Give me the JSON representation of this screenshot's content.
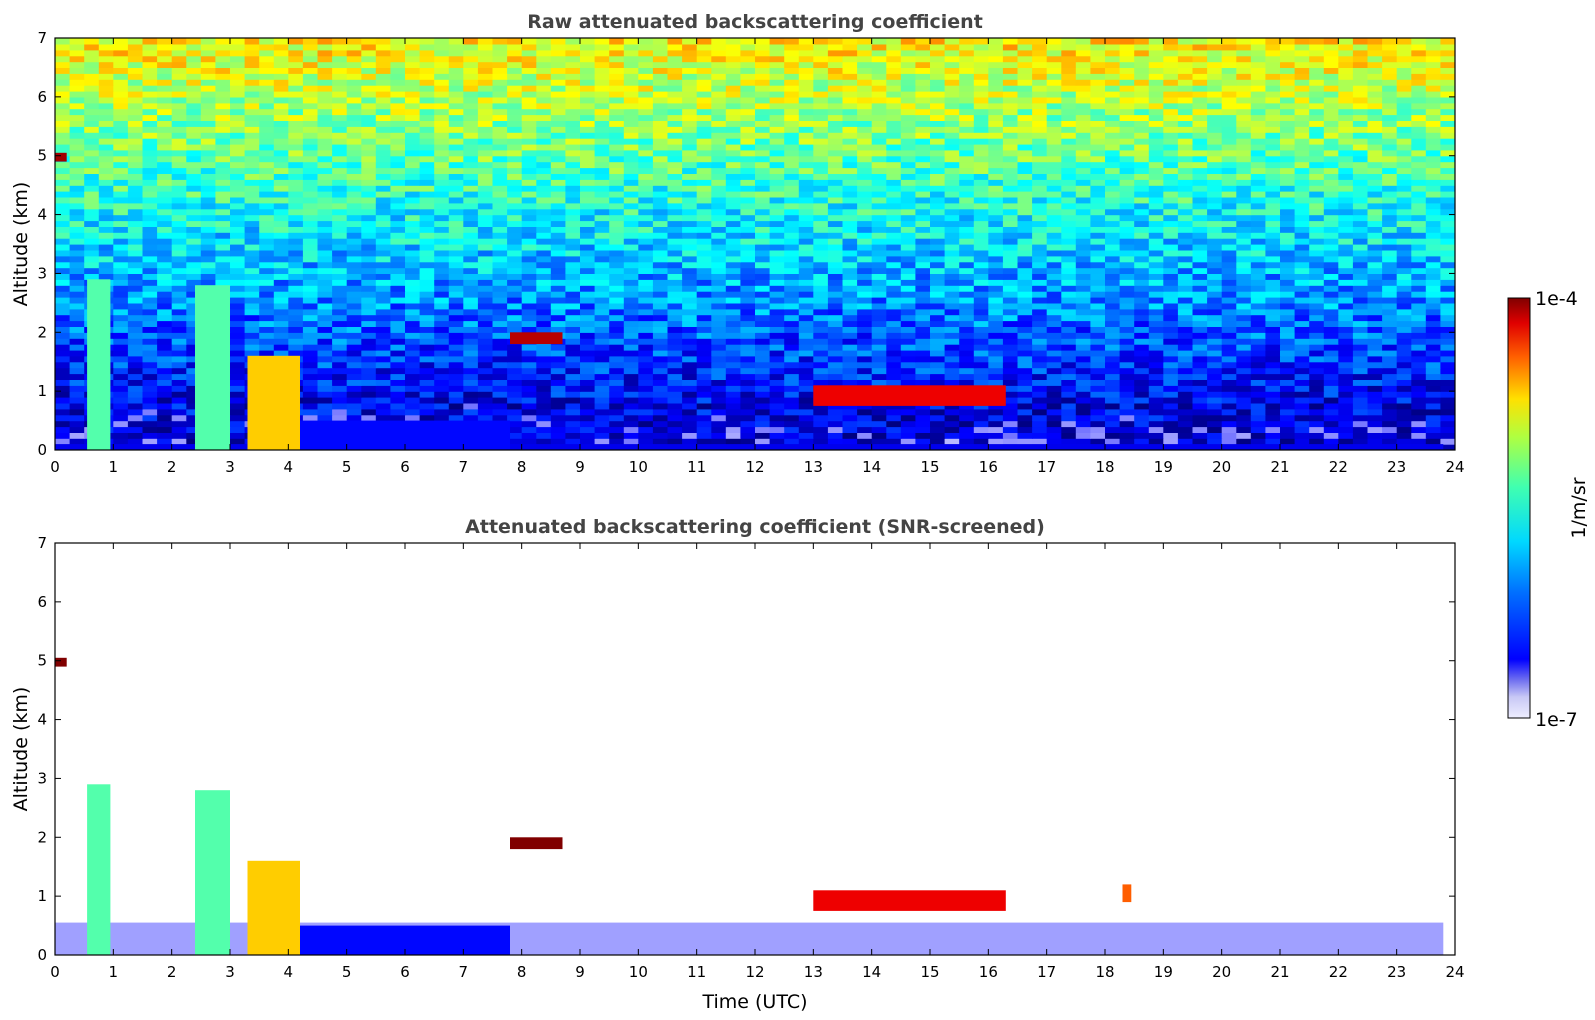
{
  "chart_data": [
    {
      "type": "heatmap",
      "title": "Raw attenuated backscattering coefficient",
      "ylabel": "Altitude (km)",
      "xlabel": "",
      "xlim": [
        0,
        24
      ],
      "ylim": [
        0,
        7
      ],
      "x_ticks": [
        "0",
        "1",
        "2",
        "3",
        "4",
        "5",
        "6",
        "7",
        "8",
        "9",
        "10",
        "11",
        "12",
        "13",
        "14",
        "15",
        "16",
        "17",
        "18",
        "19",
        "20",
        "21",
        "22",
        "23",
        "24"
      ],
      "y_ticks": [
        "0",
        "1",
        "2",
        "3",
        "4",
        "5",
        "6",
        "7"
      ],
      "features": [
        {
          "kind": "surface_layer",
          "x": [
            0,
            23.8
          ],
          "y": [
            0,
            0.1
          ],
          "level": 0.18
        },
        {
          "kind": "aerosol_layer",
          "x": [
            4.2,
            7.8
          ],
          "y": [
            0,
            0.5
          ],
          "level": 0.2
        },
        {
          "kind": "cloud_column",
          "x": [
            0.55,
            0.95
          ],
          "y": [
            0,
            2.9
          ],
          "level": 0.5
        },
        {
          "kind": "cloud_column",
          "x": [
            2.4,
            3.0
          ],
          "y": [
            0,
            2.8
          ],
          "level": 0.5
        },
        {
          "kind": "cloud_column",
          "x": [
            3.3,
            4.2
          ],
          "y": [
            0,
            1.6
          ],
          "level": 0.7
        },
        {
          "kind": "cloud_layer",
          "x": [
            0.0,
            0.2
          ],
          "y": [
            4.9,
            5.05
          ],
          "level": 0.97
        },
        {
          "kind": "cloud_layer",
          "x": [
            7.8,
            8.7
          ],
          "y": [
            1.8,
            2.0
          ],
          "level": 0.95
        },
        {
          "kind": "cloud_layer",
          "x": [
            13.0,
            16.3
          ],
          "y": [
            0.75,
            1.1
          ],
          "level": 0.9
        }
      ]
    },
    {
      "type": "heatmap",
      "title": "Attenuated backscattering coefficient (SNR-screened)",
      "ylabel": "Altitude (km)",
      "xlabel": "Time (UTC)",
      "xlim": [
        0,
        24
      ],
      "ylim": [
        0,
        7
      ],
      "x_ticks": [
        "0",
        "1",
        "2",
        "3",
        "4",
        "5",
        "6",
        "7",
        "8",
        "9",
        "10",
        "11",
        "12",
        "13",
        "14",
        "15",
        "16",
        "17",
        "18",
        "19",
        "20",
        "21",
        "22",
        "23",
        "24"
      ],
      "y_ticks": [
        "0",
        "1",
        "2",
        "3",
        "4",
        "5",
        "6",
        "7"
      ],
      "features": [
        {
          "kind": "boundary_layer",
          "x": [
            0,
            23.8
          ],
          "y": [
            0,
            0.55
          ],
          "level": 0.05
        },
        {
          "kind": "aerosol_layer",
          "x": [
            4.2,
            7.8
          ],
          "y": [
            0,
            0.5
          ],
          "level": 0.2
        },
        {
          "kind": "cloud_column",
          "x": [
            0.55,
            0.95
          ],
          "y": [
            0,
            2.9
          ],
          "level": 0.5
        },
        {
          "kind": "cloud_column",
          "x": [
            2.4,
            3.0
          ],
          "y": [
            0,
            2.8
          ],
          "level": 0.5
        },
        {
          "kind": "cloud_column",
          "x": [
            3.3,
            4.2
          ],
          "y": [
            0,
            1.6
          ],
          "level": 0.7
        },
        {
          "kind": "cloud_layer",
          "x": [
            0.0,
            0.2
          ],
          "y": [
            4.9,
            5.05
          ],
          "level": 1.0
        },
        {
          "kind": "cloud_layer",
          "x": [
            7.8,
            8.7
          ],
          "y": [
            1.8,
            2.0
          ],
          "level": 1.0
        },
        {
          "kind": "cloud_layer",
          "x": [
            13.0,
            16.3
          ],
          "y": [
            0.75,
            1.1
          ],
          "level": 0.9
        },
        {
          "kind": "cloud_layer",
          "x": [
            18.3,
            18.45
          ],
          "y": [
            0.9,
            1.2
          ],
          "level": 0.8
        }
      ]
    }
  ],
  "colorbar": {
    "label": "1/m/sr",
    "max_label": "1e-4",
    "min_label": "1e-7",
    "colormap": "jet",
    "scale": "log",
    "range": [
      1e-07,
      0.0001
    ]
  },
  "colors": {
    "axis": "#000000",
    "title": "#444444",
    "text": "#000000",
    "background": "#ffffff"
  }
}
